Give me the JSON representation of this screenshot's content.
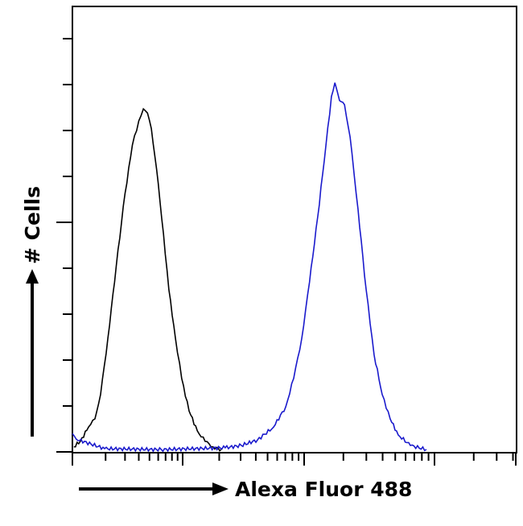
{
  "chart_data": {
    "type": "line",
    "title": "",
    "xlabel": "Alexa Fluor 488",
    "ylabel": "# Cells",
    "x_scale": "log",
    "xlim": [
      1,
      4500
    ],
    "ylim": [
      0,
      97
    ],
    "y_ticks": [
      0,
      10,
      20,
      30,
      40,
      50,
      60,
      70,
      80,
      90
    ],
    "y_major_ticks": [
      0,
      50
    ],
    "x_decades": [
      1,
      10,
      100,
      1000
    ],
    "grid": false,
    "legend": "none",
    "series": [
      {
        "color": "#000000",
        "x": [
          1.03,
          1.18,
          1.4,
          1.6,
          1.8,
          2.1,
          2.5,
          3.0,
          3.5,
          4.0,
          4.4,
          4.8,
          5.2,
          5.8,
          6.7,
          7.5,
          8.6,
          9.8,
          11.3,
          13.2,
          15.3,
          17.8,
          20.8
        ],
        "y": [
          1.1,
          2.3,
          5.4,
          7.2,
          12.5,
          24.8,
          40.5,
          56.3,
          66.8,
          72.1,
          74.7,
          73.8,
          70.4,
          61.6,
          47.5,
          35.3,
          24.8,
          16.0,
          8.9,
          4.6,
          2.3,
          1.1,
          0.5
        ]
      },
      {
        "color": "#1a1acc",
        "x": [
          1.0,
          1.08,
          1.96,
          6.4,
          22.4,
          30.4,
          41.3,
          56,
          70.5,
          82,
          95.5,
          110,
          127,
          147,
          162,
          172,
          187,
          204,
          225,
          259,
          299,
          344,
          397,
          457,
          527,
          653,
          867
        ],
        "y": [
          4.0,
          2.8,
          0.7,
          0.5,
          0.9,
          1.4,
          2.6,
          5.4,
          9.8,
          16.0,
          24.7,
          37.0,
          51.1,
          66.8,
          77.4,
          80.4,
          76.5,
          75.6,
          68.6,
          52.8,
          35.3,
          21.2,
          12.5,
          7.2,
          3.7,
          1.4,
          0.5
        ]
      }
    ]
  }
}
